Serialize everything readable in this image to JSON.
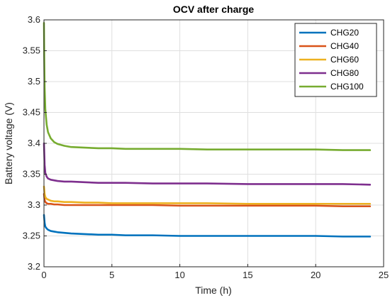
{
  "chart_data": {
    "type": "line",
    "title": "OCV after charge",
    "xlabel": "Time (h)",
    "ylabel": "Battery voltage (V)",
    "xlim": [
      0,
      25
    ],
    "ylim": [
      3.2,
      3.6
    ],
    "xticks": [
      "0",
      "5",
      "10",
      "15",
      "20",
      "25"
    ],
    "yticks": [
      "3.2",
      "3.25",
      "3.3",
      "3.35",
      "3.4",
      "3.45",
      "3.5",
      "3.55",
      "3.6"
    ],
    "grid": true,
    "legend_position": "top-right",
    "series": [
      {
        "name": "CHG20",
        "color": "#0072BD",
        "x": [
          0,
          0.05,
          0.1,
          0.2,
          0.3,
          0.5,
          0.75,
          1,
          1.5,
          2,
          3,
          4,
          5,
          6,
          8,
          10,
          12,
          15,
          18,
          20,
          22,
          24
        ],
        "y": [
          3.284,
          3.271,
          3.265,
          3.262,
          3.26,
          3.258,
          3.257,
          3.256,
          3.255,
          3.254,
          3.253,
          3.252,
          3.252,
          3.251,
          3.251,
          3.25,
          3.25,
          3.25,
          3.25,
          3.25,
          3.249,
          3.249
        ]
      },
      {
        "name": "CHG40",
        "color": "#D95319",
        "x": [
          0,
          0.05,
          0.1,
          0.2,
          0.3,
          0.5,
          0.75,
          1,
          1.5,
          2,
          3,
          4,
          5,
          6,
          8,
          10,
          12,
          15,
          18,
          20,
          22,
          24
        ],
        "y": [
          3.318,
          3.308,
          3.305,
          3.303,
          3.302,
          3.302,
          3.301,
          3.301,
          3.3,
          3.3,
          3.3,
          3.3,
          3.3,
          3.3,
          3.3,
          3.299,
          3.299,
          3.299,
          3.299,
          3.299,
          3.298,
          3.298
        ]
      },
      {
        "name": "CHG60",
        "color": "#EDB120",
        "x": [
          0,
          0.05,
          0.1,
          0.2,
          0.3,
          0.5,
          0.75,
          1,
          1.5,
          2,
          3,
          4,
          5,
          6,
          8,
          10,
          12,
          15,
          18,
          20,
          22,
          24
        ],
        "y": [
          3.33,
          3.318,
          3.313,
          3.31,
          3.309,
          3.307,
          3.306,
          3.306,
          3.305,
          3.305,
          3.304,
          3.304,
          3.303,
          3.303,
          3.303,
          3.303,
          3.303,
          3.302,
          3.302,
          3.302,
          3.302,
          3.302
        ]
      },
      {
        "name": "CHG80",
        "color": "#7E2F8E",
        "x": [
          0,
          0.05,
          0.1,
          0.2,
          0.3,
          0.5,
          0.75,
          1,
          1.5,
          2,
          3,
          4,
          5,
          6,
          8,
          10,
          12,
          15,
          18,
          20,
          22,
          24
        ],
        "y": [
          3.4,
          3.365,
          3.352,
          3.346,
          3.343,
          3.341,
          3.34,
          3.339,
          3.338,
          3.338,
          3.337,
          3.336,
          3.336,
          3.336,
          3.335,
          3.335,
          3.335,
          3.334,
          3.334,
          3.334,
          3.334,
          3.333
        ]
      },
      {
        "name": "CHG100",
        "color": "#77AC30",
        "x": [
          0,
          0.02,
          0.05,
          0.1,
          0.2,
          0.3,
          0.5,
          0.75,
          1,
          1.5,
          2,
          3,
          4,
          5,
          6,
          8,
          10,
          12,
          15,
          18,
          20,
          22,
          24
        ],
        "y": [
          3.595,
          3.54,
          3.49,
          3.455,
          3.43,
          3.418,
          3.408,
          3.402,
          3.399,
          3.396,
          3.394,
          3.393,
          3.392,
          3.392,
          3.391,
          3.391,
          3.391,
          3.39,
          3.39,
          3.39,
          3.39,
          3.389,
          3.389
        ]
      }
    ]
  }
}
